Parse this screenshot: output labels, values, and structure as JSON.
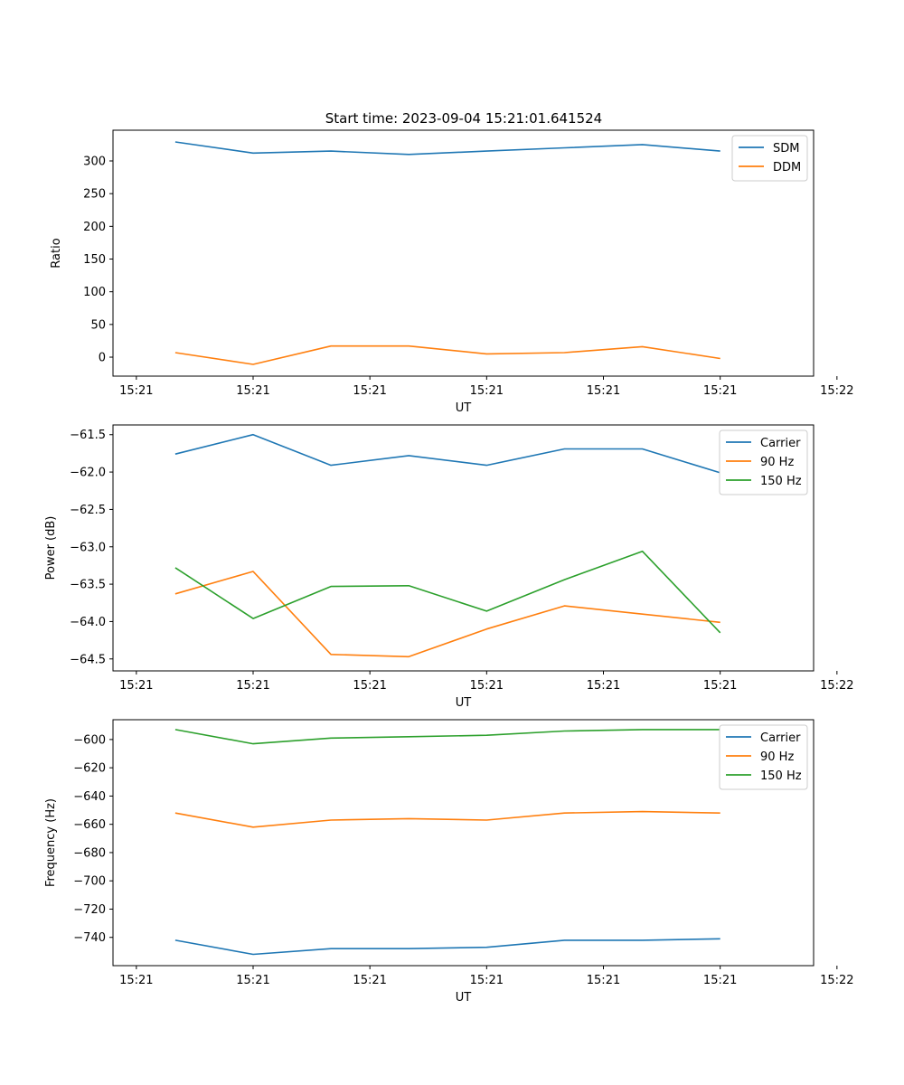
{
  "title": "Start time: 2023-09-04 15:21:01.641524",
  "colors": {
    "blue": "#1f77b4",
    "orange": "#ff7f0e",
    "green": "#2ca02c"
  },
  "chart_data": [
    {
      "type": "line",
      "xlabel": "UT",
      "ylabel": "Ratio",
      "x_points": [
        1,
        2,
        3,
        4,
        5,
        6,
        7,
        8
      ],
      "xlim": [
        0.2,
        9.2
      ],
      "x_ticks": [
        0.5,
        2,
        3.5,
        5,
        6.5,
        8,
        9.5
      ],
      "x_tick_labels": [
        "15:21",
        "15:21",
        "15:21",
        "15:21",
        "15:21",
        "15:21",
        "15:22"
      ],
      "ylim": [
        -29,
        347
      ],
      "y_ticks": [
        300,
        250,
        200,
        150,
        100,
        50,
        0
      ],
      "y_tick_labels": [
        "300",
        "250",
        "200",
        "150",
        "100",
        "50",
        "0"
      ],
      "legend_position": "top-right",
      "series": [
        {
          "name": "SDM",
          "color": "#1f77b4",
          "values": [
            329,
            312,
            315,
            310,
            315,
            320,
            325,
            315
          ]
        },
        {
          "name": "DDM",
          "color": "#ff7f0e",
          "values": [
            7,
            -11,
            17,
            17,
            5,
            7,
            16,
            -2
          ]
        }
      ]
    },
    {
      "type": "line",
      "xlabel": "UT",
      "ylabel": "Power (dB)",
      "x_points": [
        1,
        2,
        3,
        4,
        5,
        6,
        7,
        8
      ],
      "xlim": [
        0.2,
        9.2
      ],
      "x_ticks": [
        0.5,
        2,
        3.5,
        5,
        6.5,
        8,
        9.5
      ],
      "x_tick_labels": [
        "15:21",
        "15:21",
        "15:21",
        "15:21",
        "15:21",
        "15:21",
        "15:22"
      ],
      "ylim": [
        -64.66,
        -61.37
      ],
      "y_ticks": [
        -61.5,
        -62.0,
        -62.5,
        -63.0,
        -63.5,
        -64.0,
        -64.5
      ],
      "y_tick_labels": [
        "−61.5",
        "−62.0",
        "−62.5",
        "−63.0",
        "−63.5",
        "−64.0",
        "−64.5"
      ],
      "legend_position": "top-right",
      "series": [
        {
          "name": "Carrier",
          "color": "#1f77b4",
          "values": [
            -61.76,
            -61.5,
            -61.91,
            -61.78,
            -61.91,
            -61.69,
            -61.69,
            -62.01
          ]
        },
        {
          "name": "90 Hz",
          "color": "#ff7f0e",
          "values": [
            -63.63,
            -63.33,
            -64.44,
            -64.47,
            -64.1,
            -63.79,
            -63.9,
            -64.01
          ]
        },
        {
          "name": "150 Hz",
          "color": "#2ca02c",
          "values": [
            -63.28,
            -63.96,
            -63.53,
            -63.52,
            -63.86,
            -63.44,
            -63.06,
            -64.15
          ]
        }
      ]
    },
    {
      "type": "line",
      "xlabel": "UT",
      "ylabel": "Frequency (Hz)",
      "x_points": [
        1,
        2,
        3,
        4,
        5,
        6,
        7,
        8
      ],
      "xlim": [
        0.2,
        9.2
      ],
      "x_ticks": [
        0.5,
        2,
        3.5,
        5,
        6.5,
        8,
        9.5
      ],
      "x_tick_labels": [
        "15:21",
        "15:21",
        "15:21",
        "15:21",
        "15:21",
        "15:21",
        "15:22"
      ],
      "ylim": [
        -760,
        -586
      ],
      "y_ticks": [
        -600,
        -620,
        -640,
        -660,
        -680,
        -700,
        -720,
        -740
      ],
      "y_tick_labels": [
        "−600",
        "−620",
        "−640",
        "−660",
        "−680",
        "−700",
        "−720",
        "−740"
      ],
      "legend_position": "top-right",
      "series": [
        {
          "name": "Carrier",
          "color": "#1f77b4",
          "values": [
            -742,
            -752,
            -748,
            -748,
            -747,
            -742,
            -742,
            -741
          ]
        },
        {
          "name": "90 Hz",
          "color": "#ff7f0e",
          "values": [
            -652,
            -662,
            -657,
            -656,
            -657,
            -652,
            -651,
            -652
          ]
        },
        {
          "name": "150 Hz",
          "color": "#2ca02c",
          "values": [
            -593,
            -603,
            -599,
            -598,
            -597,
            -594,
            -593,
            -593
          ]
        }
      ]
    }
  ]
}
